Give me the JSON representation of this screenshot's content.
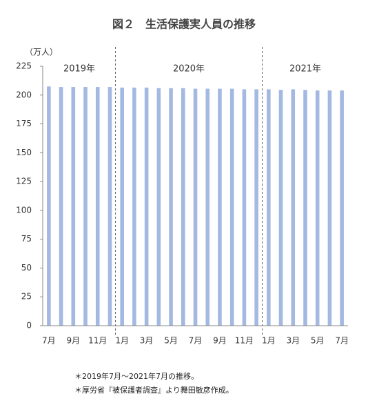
{
  "chart_data": {
    "type": "bar",
    "title": "図２　生活保護実人員の推移",
    "y_unit": "（万人）",
    "categories": [
      "7月",
      null,
      "9月",
      null,
      "11月",
      null,
      "1月",
      null,
      "3月",
      null,
      "5月",
      null,
      "7月",
      null,
      "9月",
      null,
      "11月",
      null,
      "1月",
      null,
      "3月",
      null,
      "5月",
      null,
      "7月"
    ],
    "values": [
      207.5,
      207,
      207,
      207,
      207,
      207,
      206.5,
      206.5,
      206.5,
      206,
      206,
      206,
      205.5,
      205.5,
      205.5,
      205.5,
      205,
      205,
      205,
      204.5,
      205,
      204.5,
      204,
      204,
      204
    ],
    "color": "#a4b9e2",
    "ylim": [
      0,
      225
    ],
    "yticks": [
      0,
      25,
      50,
      75,
      100,
      125,
      150,
      175,
      200,
      225
    ],
    "grid": false,
    "year_labels": [
      "2019年",
      "2020年",
      "2021年"
    ],
    "notes": [
      "＊2019年7月～2021年7月の推移。",
      "＊厚労省『被保護者調査』より舞田敏彦作成。"
    ]
  }
}
